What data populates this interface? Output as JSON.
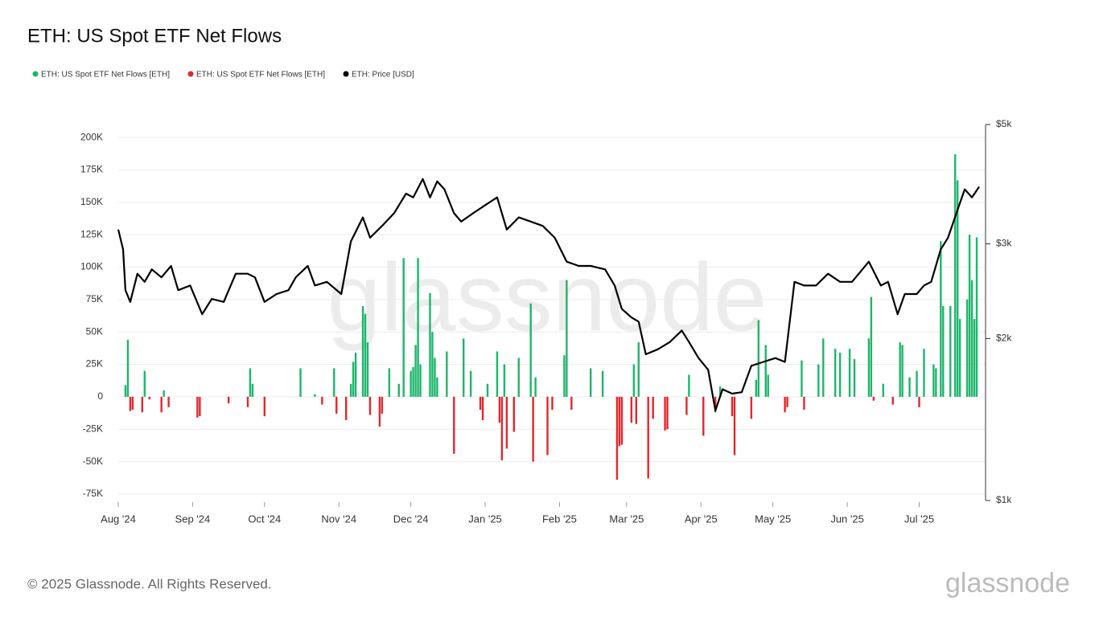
{
  "chart_data": {
    "type": "bar-line",
    "title": "ETH: US Spot ETF Net Flows",
    "watermark": "glassnode",
    "footer": "© 2025 Glassnode. All Rights Reserved.",
    "logo": "glassnode",
    "xlim": [
      "2024-08-01",
      "2025-07-27"
    ],
    "xticks": [
      {
        "value": "2024-08-01",
        "label": "Aug '24"
      },
      {
        "value": "2024-09-01",
        "label": "Sep '24"
      },
      {
        "value": "2024-10-01",
        "label": "Oct '24"
      },
      {
        "value": "2024-11-01",
        "label": "Nov '24"
      },
      {
        "value": "2024-12-01",
        "label": "Dec '24"
      },
      {
        "value": "2025-01-01",
        "label": "Jan '25"
      },
      {
        "value": "2025-02-01",
        "label": "Feb '25"
      },
      {
        "value": "2025-03-01",
        "label": "Mar '25"
      },
      {
        "value": "2025-04-01",
        "label": "Apr '25"
      },
      {
        "value": "2025-05-01",
        "label": "May '25"
      },
      {
        "value": "2025-06-01",
        "label": "Jun '25"
      },
      {
        "value": "2025-07-01",
        "label": "Jul '25"
      }
    ],
    "ylim": [
      -80000,
      210000
    ],
    "yticks": [
      {
        "value": -75000,
        "label": "-75K"
      },
      {
        "value": -50000,
        "label": "-50K"
      },
      {
        "value": -25000,
        "label": "-25K"
      },
      0,
      {
        "value": 25000,
        "label": "25K"
      },
      {
        "value": 50000,
        "label": "50K"
      },
      {
        "value": 75000,
        "label": "75K"
      },
      {
        "value": 100000,
        "label": "100K"
      },
      {
        "value": 125000,
        "label": "125K"
      },
      {
        "value": 150000,
        "label": "150K"
      },
      {
        "value": 175000,
        "label": "175K"
      },
      {
        "value": 200000,
        "label": "200K"
      }
    ],
    "y2lim": [
      1000,
      5000
    ],
    "y2log": true,
    "y2ticks": [
      {
        "value": 1000,
        "label": "$1k"
      },
      {
        "value": 2000,
        "label": "$2k"
      },
      {
        "value": 3000,
        "label": "$3k"
      },
      {
        "value": 5000,
        "label": "$5k"
      }
    ],
    "grid": true,
    "series": [
      {
        "name": "ETH: US Spot ETF Net Flows [ETH]",
        "color": "#1db66b",
        "kind": "bar",
        "x": [
          "2024-08-04",
          "2024-08-05",
          "2024-08-12",
          "2024-08-20",
          "2024-09-25",
          "2024-09-26",
          "2024-10-16",
          "2024-10-22",
          "2024-10-30",
          "2024-11-06",
          "2024-11-07",
          "2024-11-08",
          "2024-11-11",
          "2024-11-12",
          "2024-11-13",
          "2024-11-22",
          "2024-11-26",
          "2024-11-28",
          "2024-12-01",
          "2024-12-02",
          "2024-12-03",
          "2024-12-04",
          "2024-12-05",
          "2024-12-09",
          "2024-12-10",
          "2024-12-11",
          "2024-12-12",
          "2024-12-16",
          "2024-12-23",
          "2024-12-26",
          "2025-01-02",
          "2025-01-06",
          "2025-01-09",
          "2025-01-15",
          "2025-01-20",
          "2025-01-22",
          "2025-02-03",
          "2025-02-04",
          "2025-02-14",
          "2025-02-19",
          "2025-03-04",
          "2025-03-06",
          "2025-03-27",
          "2025-04-09",
          "2025-04-24",
          "2025-04-25",
          "2025-04-28",
          "2025-04-29",
          "2025-05-13",
          "2025-05-20",
          "2025-05-22",
          "2025-05-27",
          "2025-05-29",
          "2025-06-02",
          "2025-06-04",
          "2025-06-10",
          "2025-06-11",
          "2025-06-16",
          "2025-06-23",
          "2025-06-24",
          "2025-06-27",
          "2025-06-30",
          "2025-07-03",
          "2025-07-07",
          "2025-07-08",
          "2025-07-10",
          "2025-07-11",
          "2025-07-14",
          "2025-07-16",
          "2025-07-17",
          "2025-07-18",
          "2025-07-21",
          "2025-07-22",
          "2025-07-23",
          "2025-07-24",
          "2025-07-25"
        ],
        "values": [
          9000,
          44000,
          20000,
          5000,
          22000,
          10000,
          22000,
          2000,
          22000,
          10000,
          27000,
          34000,
          70000,
          64000,
          42000,
          22000,
          10000,
          107000,
          20000,
          23000,
          40000,
          107000,
          25000,
          80000,
          50000,
          30000,
          15000,
          35000,
          45000,
          20000,
          10000,
          35000,
          25000,
          30000,
          72000,
          15000,
          32000,
          90000,
          22000,
          20000,
          25000,
          42000,
          17000,
          8000,
          13000,
          59000,
          40000,
          17000,
          28000,
          25000,
          45000,
          37000,
          34000,
          37000,
          29000,
          45000,
          77000,
          10000,
          42000,
          40000,
          15000,
          20000,
          37000,
          25000,
          22000,
          120000,
          70000,
          70000,
          187000,
          167000,
          60000,
          75000,
          125000,
          90000,
          60000,
          123000
        ]
      },
      {
        "name": "ETH: US Spot ETF Net Flows [ETH]",
        "color": "#e0282e",
        "kind": "bar",
        "x": [
          "2024-08-06",
          "2024-08-07",
          "2024-08-11",
          "2024-08-14",
          "2024-08-19",
          "2024-08-22",
          "2024-09-03",
          "2024-09-04",
          "2024-09-16",
          "2024-09-24",
          "2024-10-01",
          "2024-10-25",
          "2024-10-31",
          "2024-11-04",
          "2024-11-14",
          "2024-11-18",
          "2024-11-19",
          "2024-12-19",
          "2024-12-30",
          "2024-12-31",
          "2025-01-07",
          "2025-01-08",
          "2025-01-10",
          "2025-01-13",
          "2025-01-21",
          "2025-01-27",
          "2025-01-29",
          "2025-02-06",
          "2025-02-25",
          "2025-02-26",
          "2025-02-27",
          "2025-03-03",
          "2025-03-05",
          "2025-03-10",
          "2025-03-12",
          "2025-03-17",
          "2025-03-18",
          "2025-03-26",
          "2025-04-02",
          "2025-04-07",
          "2025-04-14",
          "2025-04-15",
          "2025-04-22",
          "2025-05-06",
          "2025-05-07",
          "2025-05-14",
          "2025-06-12",
          "2025-06-20",
          "2025-07-01"
        ],
        "values": [
          -11000,
          -10000,
          -12000,
          -2000,
          -12000,
          -8000,
          -16000,
          -15000,
          -5000,
          -8000,
          -15000,
          -6000,
          -13000,
          -18000,
          -14000,
          -23000,
          -13000,
          -44000,
          -10000,
          -18000,
          -20000,
          -49000,
          -40000,
          -27000,
          -50000,
          -45000,
          -10000,
          -10000,
          -64000,
          -38000,
          -37000,
          -20000,
          -21000,
          -63000,
          -17000,
          -26000,
          -25000,
          -14000,
          -30000,
          -12000,
          -15000,
          -45000,
          -17000,
          -12000,
          -8000,
          -10000,
          -3000,
          -6000,
          -8000
        ]
      },
      {
        "name": "ETH: Price [USD]",
        "color": "#000000",
        "kind": "line",
        "axis": "y2",
        "x": [
          "2024-08-01",
          "2024-08-03",
          "2024-08-04",
          "2024-08-06",
          "2024-08-09",
          "2024-08-12",
          "2024-08-15",
          "2024-08-19",
          "2024-08-23",
          "2024-08-26",
          "2024-08-31",
          "2024-09-05",
          "2024-09-09",
          "2024-09-14",
          "2024-09-19",
          "2024-09-24",
          "2024-09-27",
          "2024-10-01",
          "2024-10-06",
          "2024-10-11",
          "2024-10-14",
          "2024-10-19",
          "2024-10-22",
          "2024-10-27",
          "2024-11-02",
          "2024-11-06",
          "2024-11-11",
          "2024-11-14",
          "2024-11-19",
          "2024-11-24",
          "2024-11-29",
          "2024-12-02",
          "2024-12-06",
          "2024-12-09",
          "2024-12-12",
          "2024-12-15",
          "2024-12-19",
          "2024-12-22",
          "2024-12-27",
          "2025-01-01",
          "2025-01-06",
          "2025-01-10",
          "2025-01-15",
          "2025-01-20",
          "2025-01-25",
          "2025-01-30",
          "2025-02-04",
          "2025-02-09",
          "2025-02-14",
          "2025-02-20",
          "2025-02-24",
          "2025-02-27",
          "2025-03-03",
          "2025-03-06",
          "2025-03-09",
          "2025-03-14",
          "2025-03-19",
          "2025-03-24",
          "2025-03-27",
          "2025-03-31",
          "2025-04-04",
          "2025-04-07",
          "2025-04-10",
          "2025-04-14",
          "2025-04-18",
          "2025-04-22",
          "2025-04-27",
          "2025-05-02",
          "2025-05-06",
          "2025-05-10",
          "2025-05-14",
          "2025-05-19",
          "2025-05-24",
          "2025-05-29",
          "2025-06-03",
          "2025-06-10",
          "2025-06-15",
          "2025-06-18",
          "2025-06-22",
          "2025-06-25",
          "2025-06-30",
          "2025-07-03",
          "2025-07-06",
          "2025-07-10",
          "2025-07-13",
          "2025-07-17",
          "2025-07-20",
          "2025-07-23",
          "2025-07-26"
        ],
        "values": [
          3190,
          2930,
          2460,
          2340,
          2640,
          2550,
          2690,
          2600,
          2730,
          2460,
          2510,
          2220,
          2370,
          2340,
          2640,
          2640,
          2600,
          2340,
          2420,
          2460,
          2600,
          2730,
          2510,
          2550,
          2420,
          3030,
          3360,
          3080,
          3240,
          3420,
          3720,
          3660,
          3960,
          3660,
          3920,
          3790,
          3420,
          3300,
          3420,
          3540,
          3660,
          3190,
          3360,
          3300,
          3240,
          3080,
          2780,
          2730,
          2730,
          2690,
          2510,
          2270,
          2190,
          2150,
          1870,
          1910,
          1970,
          2070,
          1970,
          1840,
          1750,
          1470,
          1610,
          1580,
          1590,
          1780,
          1810,
          1840,
          1810,
          2550,
          2510,
          2510,
          2640,
          2550,
          2550,
          2780,
          2510,
          2550,
          2220,
          2420,
          2420,
          2510,
          2550,
          2930,
          3080,
          3470,
          3790,
          3660,
          3830
        ]
      }
    ]
  }
}
